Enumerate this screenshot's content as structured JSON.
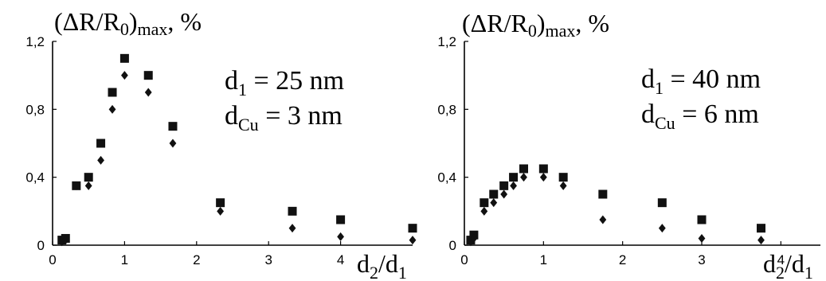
{
  "chart_data": [
    {
      "type": "scatter",
      "ylabel": "(ΔR/R0)max, %",
      "ylabel_main": "(ΔR/R",
      "ylabel_sub0": "0",
      "ylabel_close": ")",
      "ylabel_sub": "max",
      "ylabel_unit": ", %",
      "xlabel": "d2/d1",
      "xlabel_main": "d",
      "xlabel_sub2": "2",
      "xlabel_slash": "/d",
      "xlabel_sub1": "1",
      "xlim": [
        0,
        5
      ],
      "ylim": [
        0,
        1.2
      ],
      "x_ticks": [
        "0",
        "1",
        "2",
        "3",
        "4"
      ],
      "y_ticks": [
        "0",
        "0,4",
        "0,8",
        "1,2"
      ],
      "annotation": {
        "line1": {
          "main": "d",
          "sub": "1",
          "rest": " = 25 nm"
        },
        "line2": {
          "main": "d",
          "sub": "Cu",
          "rest": " = 3 nm"
        }
      },
      "series": [
        {
          "marker": "square",
          "color": "#111111",
          "points": [
            [
              0.13,
              0.03
            ],
            [
              0.18,
              0.04
            ],
            [
              0.33,
              0.35
            ],
            [
              0.5,
              0.4
            ],
            [
              0.67,
              0.6
            ],
            [
              0.83,
              0.9
            ],
            [
              1.0,
              1.1
            ],
            [
              1.33,
              1.0
            ],
            [
              1.67,
              0.7
            ],
            [
              2.33,
              0.25
            ],
            [
              3.33,
              0.2
            ],
            [
              4.0,
              0.15
            ],
            [
              5.0,
              0.1
            ]
          ]
        },
        {
          "marker": "diamond",
          "color": "#111111",
          "points": [
            [
              0.13,
              0.02
            ],
            [
              0.18,
              0.03
            ],
            [
              0.33,
              0.35
            ],
            [
              0.5,
              0.35
            ],
            [
              0.67,
              0.5
            ],
            [
              0.83,
              0.8
            ],
            [
              1.0,
              1.0
            ],
            [
              1.33,
              0.9
            ],
            [
              1.67,
              0.6
            ],
            [
              2.33,
              0.2
            ],
            [
              3.33,
              0.1
            ],
            [
              4.0,
              0.05
            ],
            [
              5.0,
              0.03
            ]
          ]
        }
      ]
    },
    {
      "type": "scatter",
      "ylabel": "(ΔR/R0)max, %",
      "ylabel_main": "(ΔR/R",
      "ylabel_sub0": "0",
      "ylabel_close": ")",
      "ylabel_sub": "max",
      "ylabel_unit": ", %",
      "xlabel": "d2/d1",
      "xlabel_main": "d",
      "xlabel_sub2": "2",
      "xlabel_slash": "/d",
      "xlabel_sub1": "1",
      "xlim": [
        0,
        4.5
      ],
      "ylim": [
        0,
        1.2
      ],
      "x_ticks": [
        "0",
        "1",
        "2",
        "3",
        "4"
      ],
      "y_ticks": [
        "0",
        "0,4",
        "0,8",
        "1,2"
      ],
      "annotation": {
        "line1": {
          "main": "d",
          "sub": "1",
          "rest": " = 40 nm"
        },
        "line2": {
          "main": "d",
          "sub": "Cu",
          "rest": " = 6 nm"
        }
      },
      "series": [
        {
          "marker": "square",
          "color": "#111111",
          "points": [
            [
              0.08,
              0.03
            ],
            [
              0.12,
              0.06
            ],
            [
              0.25,
              0.25
            ],
            [
              0.37,
              0.3
            ],
            [
              0.5,
              0.35
            ],
            [
              0.62,
              0.4
            ],
            [
              0.75,
              0.45
            ],
            [
              1.0,
              0.45
            ],
            [
              1.25,
              0.4
            ],
            [
              1.75,
              0.3
            ],
            [
              2.5,
              0.25
            ],
            [
              3.0,
              0.15
            ],
            [
              3.75,
              0.1
            ]
          ]
        },
        {
          "marker": "diamond",
          "color": "#111111",
          "points": [
            [
              0.08,
              0.02
            ],
            [
              0.12,
              0.04
            ],
            [
              0.25,
              0.2
            ],
            [
              0.37,
              0.25
            ],
            [
              0.5,
              0.3
            ],
            [
              0.62,
              0.35
            ],
            [
              0.75,
              0.4
            ],
            [
              1.0,
              0.4
            ],
            [
              1.25,
              0.35
            ],
            [
              1.75,
              0.15
            ],
            [
              2.5,
              0.1
            ],
            [
              3.0,
              0.04
            ],
            [
              3.75,
              0.03
            ]
          ]
        }
      ]
    }
  ]
}
